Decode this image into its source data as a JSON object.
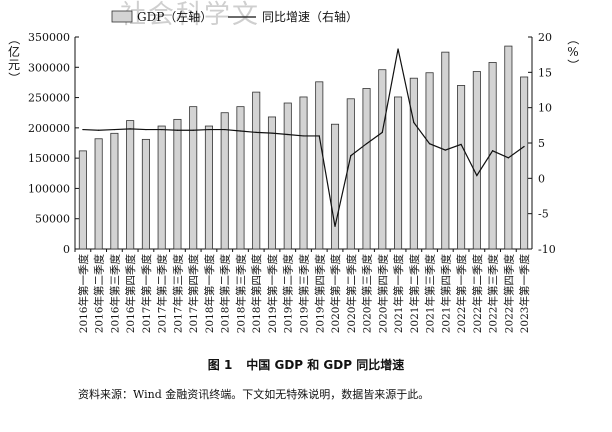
{
  "watermark": "社会科学文",
  "caption": {
    "number": "图 1",
    "title": "中国 GDP 和 GDP 同比增速"
  },
  "source_note": "资料来源：Wind 金融资讯终端。下文如无特殊说明，数据皆来源于此。",
  "chart_data": {
    "type": "bar+line",
    "categories": [
      "2016年第一季度",
      "2016年第二季度",
      "2016年第三季度",
      "2016年第四季度",
      "2017年第一季度",
      "2017年第二季度",
      "2017年第三季度",
      "2017年第四季度",
      "2018年第一季度",
      "2018年第二季度",
      "2018年第三季度",
      "2018年第四季度",
      "2019年第一季度",
      "2019年第二季度",
      "2019年第三季度",
      "2019年第四季度",
      "2020年第一季度",
      "2020年第二季度",
      "2020年第三季度",
      "2020年第四季度",
      "2021年第一季度",
      "2021年第二季度",
      "2021年第三季度",
      "2021年第四季度",
      "2022年第一季度",
      "2022年第二季度",
      "2022年第三季度",
      "2022年第四季度",
      "2023年第一季度"
    ],
    "series": [
      {
        "name": "GDP（左轴）",
        "type": "bar",
        "axis": "left",
        "values": [
          162000,
          182000,
          191000,
          212000,
          181000,
          203000,
          214000,
          235000,
          203000,
          225000,
          235000,
          259000,
          218000,
          241000,
          251000,
          276000,
          206000,
          248000,
          265000,
          296000,
          251000,
          282000,
          291000,
          325000,
          270000,
          293000,
          308000,
          335000,
          284000
        ]
      },
      {
        "name": "同比增速（右轴）",
        "type": "line",
        "axis": "right",
        "values": [
          6.9,
          6.8,
          6.9,
          7.0,
          6.9,
          6.9,
          6.8,
          6.8,
          6.9,
          6.9,
          6.7,
          6.5,
          6.4,
          6.2,
          6.0,
          6.0,
          -6.8,
          3.2,
          4.9,
          6.5,
          18.3,
          7.9,
          4.9,
          4.0,
          4.8,
          0.4,
          3.9,
          2.9,
          4.5
        ]
      }
    ],
    "left_axis": {
      "label": "亿元",
      "min": 0,
      "max": 350000,
      "ticks": [
        0,
        50000,
        100000,
        150000,
        200000,
        250000,
        300000,
        350000
      ]
    },
    "right_axis": {
      "label": "%",
      "min": -10,
      "max": 20,
      "ticks": [
        -10,
        -5,
        0,
        5,
        10,
        15,
        20
      ]
    },
    "legend": {
      "position": "top-center",
      "items": [
        "GDP（左轴）",
        "同比增速（右轴）"
      ]
    },
    "colors": {
      "bar_fill": "#d3d3d3",
      "bar_stroke": "#333333",
      "line": "#111111",
      "axis": "#111111"
    },
    "grid": false
  }
}
